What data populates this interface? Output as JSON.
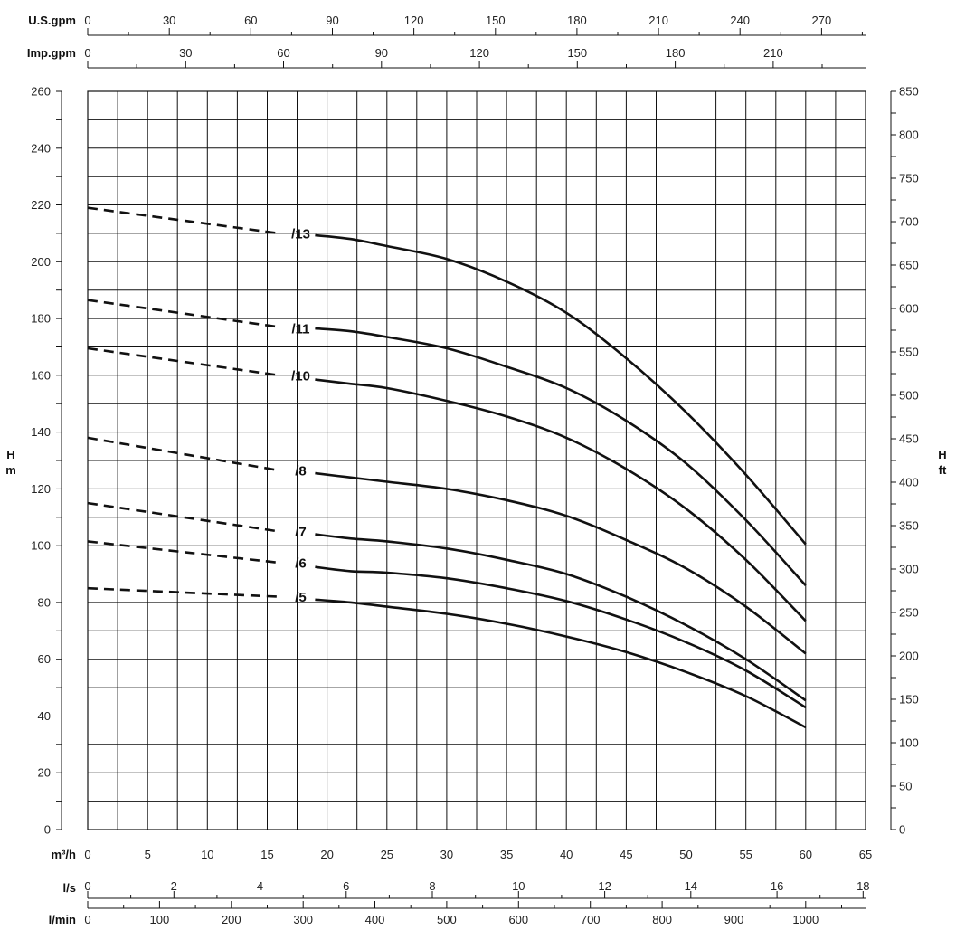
{
  "chart_data": {
    "type": "line",
    "title": "",
    "grid": true,
    "x_axis": {
      "label": "m³/h",
      "range": [
        0,
        65
      ],
      "ticks": [
        0,
        5,
        10,
        15,
        20,
        25,
        30,
        35,
        40,
        45,
        50,
        55,
        60,
        65
      ]
    },
    "y_axis": {
      "label_line1": "H",
      "label_line2": "m",
      "range": [
        0,
        260
      ],
      "ticks": [
        0,
        20,
        40,
        60,
        80,
        100,
        120,
        140,
        160,
        180,
        200,
        220,
        240,
        260
      ]
    },
    "y_axis_right": {
      "label_line1": "H",
      "label_line2": "ft",
      "range": [
        0,
        850
      ],
      "ticks": [
        0,
        50,
        100,
        150,
        200,
        250,
        300,
        350,
        400,
        450,
        500,
        550,
        600,
        650,
        700,
        750,
        800,
        850
      ]
    },
    "top_axes": [
      {
        "label": "U.S.gpm",
        "per_m3h": 4.4029,
        "ticks": [
          0,
          30,
          60,
          90,
          120,
          150,
          180,
          210,
          240,
          270
        ],
        "max": 285
      },
      {
        "label": "Imp.gpm",
        "per_m3h": 3.6662,
        "ticks": [
          0,
          30,
          60,
          90,
          120,
          150,
          180,
          210
        ],
        "max": 235
      }
    ],
    "bottom_axes": [
      {
        "label": "l/s",
        "per_m3h": 0.27778,
        "ticks": [
          0,
          2,
          4,
          6,
          8,
          10,
          12,
          14,
          16,
          18
        ],
        "minor_ticks": []
      },
      {
        "label": "l/min",
        "per_m3h": 16.6667,
        "ticks": [
          0,
          100,
          200,
          300,
          400,
          500,
          600,
          700,
          800,
          900,
          1000
        ],
        "minor_step": 50
      }
    ],
    "series": [
      {
        "name": "/13",
        "label_at": [
          17.8,
          210
        ],
        "dashed": [
          [
            0,
            219
          ],
          [
            16,
            210
          ]
        ],
        "values": [
          [
            19,
            209.3
          ],
          [
            22,
            208
          ],
          [
            25,
            205.5
          ],
          [
            30,
            201
          ],
          [
            35,
            193
          ],
          [
            40,
            182
          ],
          [
            45,
            166
          ],
          [
            50,
            147
          ],
          [
            55,
            125
          ],
          [
            60,
            100.5
          ]
        ]
      },
      {
        "name": "/11",
        "label_at": [
          17.8,
          176.5
        ],
        "dashed": [
          [
            0,
            186.5
          ],
          [
            16,
            177
          ]
        ],
        "values": [
          [
            19,
            176.5
          ],
          [
            22,
            175.5
          ],
          [
            25,
            173.5
          ],
          [
            30,
            169.5
          ],
          [
            35,
            163
          ],
          [
            40,
            155.5
          ],
          [
            45,
            144
          ],
          [
            50,
            129
          ],
          [
            55,
            109
          ],
          [
            60,
            86
          ]
        ]
      },
      {
        "name": "/10",
        "label_at": [
          17.8,
          160
        ],
        "dashed": [
          [
            0,
            169.5
          ],
          [
            16,
            160
          ]
        ],
        "values": [
          [
            19,
            158.5
          ],
          [
            22,
            157
          ],
          [
            25,
            155.5
          ],
          [
            30,
            151
          ],
          [
            35,
            145.5
          ],
          [
            40,
            138
          ],
          [
            45,
            127
          ],
          [
            50,
            113
          ],
          [
            55,
            95
          ],
          [
            60,
            73.5
          ]
        ]
      },
      {
        "name": "/8",
        "label_at": [
          17.8,
          126.5
        ],
        "dashed": [
          [
            0,
            138
          ],
          [
            16,
            126.5
          ]
        ],
        "values": [
          [
            19,
            125.5
          ],
          [
            22,
            124
          ],
          [
            25,
            122.5
          ],
          [
            30,
            120
          ],
          [
            35,
            116
          ],
          [
            40,
            110.5
          ],
          [
            45,
            102
          ],
          [
            50,
            92
          ],
          [
            55,
            78.5
          ],
          [
            60,
            62
          ]
        ]
      },
      {
        "name": "/7",
        "label_at": [
          17.8,
          105
        ],
        "dashed": [
          [
            0,
            115
          ],
          [
            16,
            105
          ]
        ],
        "values": [
          [
            19,
            104
          ],
          [
            22,
            102.5
          ],
          [
            25,
            101.5
          ],
          [
            30,
            99
          ],
          [
            35,
            95
          ],
          [
            40,
            90
          ],
          [
            45,
            82
          ],
          [
            50,
            72
          ],
          [
            55,
            60
          ],
          [
            60,
            45.5
          ]
        ]
      },
      {
        "name": "/6",
        "label_at": [
          17.8,
          94
        ],
        "dashed": [
          [
            0,
            101.5
          ],
          [
            16,
            94
          ]
        ],
        "values": [
          [
            19,
            92.5
          ],
          [
            22,
            91
          ],
          [
            25,
            90.5
          ],
          [
            30,
            88.5
          ],
          [
            35,
            85
          ],
          [
            40,
            80.5
          ],
          [
            45,
            74
          ],
          [
            50,
            66
          ],
          [
            55,
            56
          ],
          [
            60,
            43
          ]
        ]
      },
      {
        "name": "/5",
        "label_at": [
          17.8,
          82
        ],
        "dashed": [
          [
            0,
            85
          ],
          [
            16,
            82
          ]
        ],
        "values": [
          [
            19,
            81
          ],
          [
            22,
            80
          ],
          [
            25,
            78.5
          ],
          [
            30,
            76
          ],
          [
            35,
            72.5
          ],
          [
            40,
            68
          ],
          [
            45,
            62.5
          ],
          [
            50,
            55.5
          ],
          [
            55,
            47
          ],
          [
            60,
            36
          ]
        ]
      }
    ]
  }
}
